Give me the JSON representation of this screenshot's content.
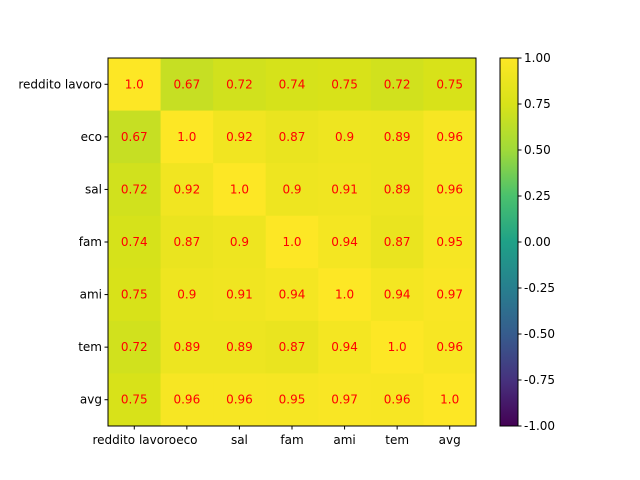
{
  "chart_data": {
    "type": "heatmap",
    "row_labels": [
      "reddito lavoro",
      "eco",
      "sal",
      "fam",
      "ami",
      "tem",
      "avg"
    ],
    "col_labels": [
      "reddito lavoro",
      "eco",
      "sal",
      "fam",
      "ami",
      "tem",
      "avg"
    ],
    "values": [
      [
        1.0,
        0.67,
        0.72,
        0.74,
        0.75,
        0.72,
        0.75
      ],
      [
        0.67,
        1.0,
        0.92,
        0.87,
        0.9,
        0.89,
        0.96
      ],
      [
        0.72,
        0.92,
        1.0,
        0.9,
        0.91,
        0.89,
        0.96
      ],
      [
        0.74,
        0.87,
        0.9,
        1.0,
        0.94,
        0.87,
        0.95
      ],
      [
        0.75,
        0.9,
        0.91,
        0.94,
        1.0,
        0.94,
        0.97
      ],
      [
        0.72,
        0.89,
        0.89,
        0.87,
        0.94,
        1.0,
        0.96
      ],
      [
        0.75,
        0.96,
        0.96,
        0.95,
        0.97,
        0.96,
        1.0
      ]
    ],
    "cell_text": [
      [
        "1.0",
        "0.67",
        "0.72",
        "0.74",
        "0.75",
        "0.72",
        "0.75"
      ],
      [
        "0.67",
        "1.0",
        "0.92",
        "0.87",
        "0.9",
        "0.89",
        "0.96"
      ],
      [
        "0.72",
        "0.92",
        "1.0",
        "0.9",
        "0.91",
        "0.89",
        "0.96"
      ],
      [
        "0.74",
        "0.87",
        "0.9",
        "1.0",
        "0.94",
        "0.87",
        "0.95"
      ],
      [
        "0.75",
        "0.9",
        "0.91",
        "0.94",
        "1.0",
        "0.94",
        "0.97"
      ],
      [
        "0.72",
        "0.89",
        "0.89",
        "0.87",
        "0.94",
        "1.0",
        "0.96"
      ],
      [
        "0.75",
        "0.96",
        "0.96",
        "0.95",
        "0.97",
        "0.96",
        "1.0"
      ]
    ],
    "colormap": "viridis",
    "vmin": -1.0,
    "vmax": 1.0,
    "annotation_color": "#ff0000",
    "colorbar": {
      "ticks": [
        1.0,
        0.75,
        0.5,
        0.25,
        0.0,
        -0.25,
        -0.5,
        -0.75,
        -1.0
      ],
      "tick_labels": [
        "1.00",
        "0.75",
        "0.50",
        "0.25",
        "0.00",
        "-0.25",
        "-0.50",
        "-0.75",
        "-1.00"
      ],
      "placement": "right"
    },
    "title": "",
    "xlabel": "",
    "ylabel": "",
    "grid": false
  }
}
